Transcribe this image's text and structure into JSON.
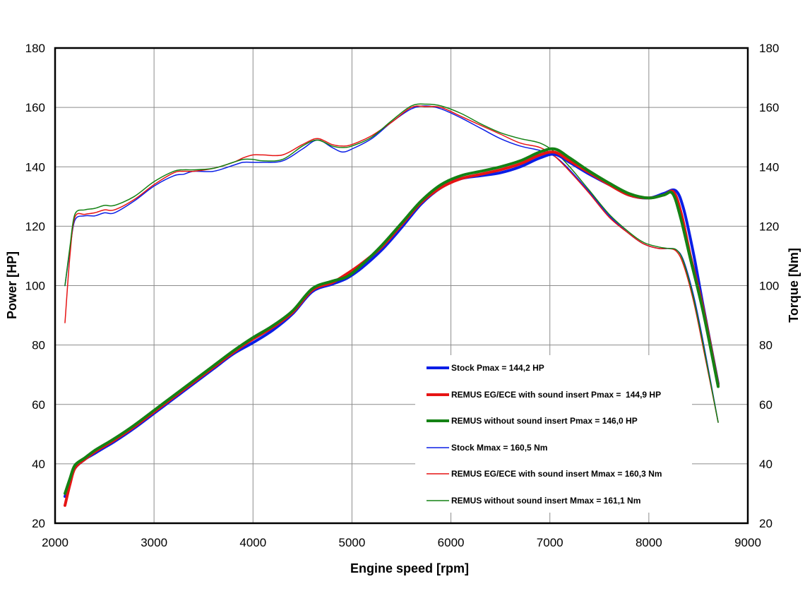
{
  "chart_data": {
    "type": "line",
    "title": "",
    "xlabel": "Engine speed [rpm]",
    "ylabel_left": "Power [HP]",
    "ylabel_right": "Torque [Nm]",
    "xlim": [
      2000,
      9000
    ],
    "ylim": [
      20,
      180
    ],
    "ylim_right": [
      20,
      180
    ],
    "x_ticks": [
      2000,
      3000,
      4000,
      5000,
      6000,
      7000,
      8000,
      9000
    ],
    "y_ticks": [
      20,
      40,
      60,
      80,
      100,
      120,
      140,
      160,
      180
    ],
    "grid": true,
    "legend_position": "bottom-right",
    "series": [
      {
        "name": "Stock Pmax = 144,2 HP",
        "color": "#0a1ee6",
        "kind": "power",
        "x": [
          2100,
          2150,
          2200,
          2300,
          2400,
          2500,
          2600,
          2800,
          3000,
          3200,
          3400,
          3600,
          3800,
          4000,
          4200,
          4400,
          4600,
          4800,
          4950,
          5100,
          5300,
          5500,
          5700,
          5900,
          6100,
          6300,
          6500,
          6700,
          6900,
          7050,
          7200,
          7400,
          7600,
          7800,
          8000,
          8150,
          8270,
          8350,
          8450,
          8550,
          8700
        ],
        "values": [
          29,
          34,
          38.5,
          41.5,
          43.5,
          45.5,
          47.5,
          52,
          57,
          62,
          67,
          72,
          77,
          80.8,
          85,
          90.5,
          98,
          100.5,
          102.5,
          106,
          112,
          119.5,
          127.5,
          133,
          136,
          137,
          138,
          140,
          143,
          144.2,
          141.5,
          137.5,
          134,
          130.5,
          129.5,
          131,
          132,
          126,
          111,
          93,
          67
        ]
      },
      {
        "name": "REMUS EG/ECE with sound insert Pmax =  144,9 HP",
        "color": "#e61414",
        "kind": "power",
        "x": [
          2100,
          2150,
          2200,
          2300,
          2400,
          2500,
          2600,
          2800,
          3000,
          3200,
          3400,
          3600,
          3800,
          4000,
          4200,
          4400,
          4600,
          4800,
          4950,
          5100,
          5300,
          5500,
          5700,
          5900,
          6100,
          6300,
          6500,
          6700,
          6900,
          7050,
          7200,
          7400,
          7600,
          7800,
          8000,
          8150,
          8250,
          8330,
          8420,
          8550,
          8700
        ],
        "values": [
          26,
          33,
          38.5,
          41.5,
          44,
          46,
          48,
          52.5,
          57.5,
          62.5,
          67.5,
          72.5,
          77.5,
          82,
          86,
          91,
          98.5,
          101,
          104,
          107.5,
          113,
          120.5,
          128,
          133,
          136,
          137.5,
          139,
          141,
          144,
          144.9,
          142,
          138,
          134,
          130.5,
          129.5,
          130.5,
          131.5,
          124,
          110,
          92,
          66.5
        ]
      },
      {
        "name": "REMUS without sound insert Pmax = 146,0 HP",
        "color": "#148214",
        "kind": "power",
        "x": [
          2100,
          2150,
          2200,
          2300,
          2400,
          2500,
          2600,
          2800,
          3000,
          3200,
          3400,
          3600,
          3800,
          4000,
          4200,
          4400,
          4600,
          4800,
          4950,
          5100,
          5300,
          5500,
          5700,
          5900,
          6100,
          6300,
          6500,
          6700,
          6900,
          7050,
          7200,
          7400,
          7600,
          7800,
          8000,
          8150,
          8240,
          8320,
          8420,
          8550,
          8700
        ],
        "values": [
          30,
          35,
          39.5,
          42,
          44.5,
          46.5,
          48.5,
          53,
          58,
          63,
          68,
          73,
          78,
          82.5,
          86.5,
          91.5,
          99,
          101.5,
          103,
          107,
          113.5,
          121,
          128.5,
          134,
          137,
          138.5,
          140,
          142,
          145,
          146,
          143,
          138.5,
          134.5,
          131,
          129.5,
          130.5,
          131,
          123,
          109,
          91,
          66
        ]
      },
      {
        "name": "Stock Mmax = 160,5 Nm",
        "color": "#0a1ee6",
        "kind": "torque",
        "x": [
          2100,
          2150,
          2200,
          2300,
          2400,
          2500,
          2600,
          2800,
          3000,
          3200,
          3300,
          3400,
          3600,
          3800,
          3900,
          4000,
          4100,
          4300,
          4500,
          4650,
          4800,
          4900,
          5000,
          5200,
          5400,
          5600,
          5750,
          5900,
          6100,
          6300,
          6500,
          6700,
          6900,
          7050,
          7200,
          7400,
          7600,
          7800,
          7950,
          8100,
          8200,
          8280,
          8350,
          8450,
          8550,
          8700
        ],
        "values": [
          100,
          112,
          122,
          123.5,
          123.5,
          124.5,
          124.5,
          128.5,
          133.5,
          137,
          137.5,
          138.5,
          138.5,
          140.5,
          141.5,
          141.5,
          141.5,
          142,
          146,
          149,
          146.5,
          145,
          146,
          149.5,
          155,
          159.5,
          160.5,
          159.5,
          156.5,
          153,
          149.5,
          147,
          145.5,
          143.5,
          139,
          131.5,
          123.5,
          117.5,
          114,
          112.5,
          112.5,
          112,
          108.5,
          97,
          81,
          54
        ]
      },
      {
        "name": "REMUS EG/ECE with sound insert Mmax = 160,3 Nm",
        "color": "#e61414",
        "kind": "torque",
        "x": [
          2100,
          2150,
          2200,
          2300,
          2400,
          2500,
          2600,
          2800,
          3000,
          3200,
          3300,
          3400,
          3600,
          3800,
          3900,
          4000,
          4100,
          4300,
          4500,
          4650,
          4800,
          4900,
          5000,
          5200,
          5400,
          5600,
          5750,
          5900,
          6100,
          6300,
          6500,
          6700,
          6900,
          7050,
          7200,
          7400,
          7600,
          7800,
          7950,
          8100,
          8200,
          8280,
          8350,
          8450,
          8550,
          8700
        ],
        "values": [
          87.5,
          110,
          123,
          124,
          124.5,
          125.5,
          125.5,
          129,
          134,
          138,
          138.5,
          138.5,
          139.5,
          141.5,
          143,
          144,
          144,
          144,
          147.5,
          149.5,
          147.5,
          147,
          147.5,
          150.5,
          155,
          160,
          160.3,
          160,
          157,
          154,
          151,
          148,
          146.5,
          143.5,
          138.5,
          131,
          123,
          117.5,
          114,
          112.5,
          112.5,
          111.5,
          107,
          95,
          79,
          54
        ]
      },
      {
        "name": "REMUS without sound insert Mmax = 161,1 Nm",
        "color": "#148214",
        "kind": "torque",
        "x": [
          2100,
          2150,
          2200,
          2300,
          2400,
          2500,
          2600,
          2800,
          3000,
          3200,
          3300,
          3400,
          3600,
          3800,
          3900,
          4000,
          4100,
          4300,
          4500,
          4650,
          4800,
          4900,
          5000,
          5200,
          5400,
          5600,
          5750,
          5900,
          6100,
          6300,
          6500,
          6700,
          6900,
          7050,
          7200,
          7400,
          7600,
          7800,
          7950,
          8100,
          8200,
          8280,
          8350,
          8450,
          8550,
          8700
        ],
        "values": [
          100,
          113,
          124,
          125.5,
          126,
          127,
          127,
          130,
          135,
          138.5,
          139,
          139,
          139.5,
          141.5,
          142.5,
          142.5,
          142,
          142.5,
          147,
          149,
          147,
          146.5,
          147,
          150,
          155.5,
          160.5,
          161.1,
          160.5,
          158,
          154.5,
          151.5,
          149.5,
          148,
          145,
          140,
          132,
          124,
          118,
          114.5,
          113,
          112.5,
          112,
          108,
          96,
          80,
          54
        ]
      }
    ]
  }
}
